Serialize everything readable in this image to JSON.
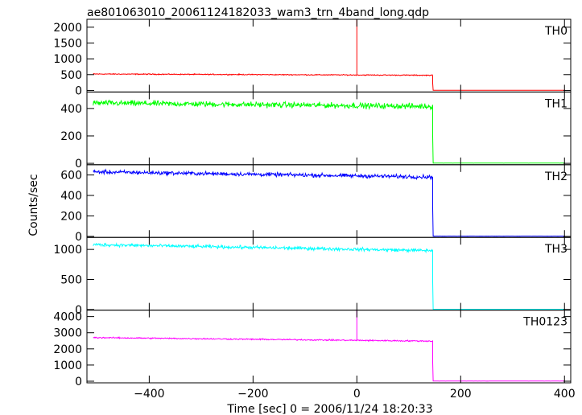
{
  "chart_data": {
    "type": "line",
    "title": "ae801063010_20061124182033_wam3_trn_4band_long.qdp",
    "xlabel": "Time [sec] 0 = 2006/11/24 18:20:33",
    "ylabel": "Counts/sec",
    "xlim": [
      -520,
      412
    ],
    "x_ticks": [
      -400,
      -200,
      0,
      200,
      400
    ],
    "x_tick_labels": [
      "−400",
      "−200",
      "0",
      "200",
      "400"
    ],
    "panels": [
      {
        "name": "TH0",
        "color": "#ff0000",
        "ylim": [
          -50,
          2250
        ],
        "y_ticks": [
          0,
          500,
          1000,
          1500,
          2000
        ],
        "series": {
          "start": -508,
          "drop": 146,
          "end": 402,
          "level_start": 520,
          "level_end": 480,
          "noise": 22,
          "floor": 5,
          "spike": {
            "x": 0,
            "y": 2250
          }
        }
      },
      {
        "name": "TH1",
        "color": "#00ff00",
        "ylim": [
          -10,
          520
        ],
        "y_ticks": [
          0,
          200,
          400
        ],
        "series": {
          "start": -508,
          "drop": 146,
          "end": 402,
          "level_start": 440,
          "level_end": 415,
          "noise": 30,
          "floor": 2
        }
      },
      {
        "name": "TH2",
        "color": "#0000ff",
        "ylim": [
          -10,
          700
        ],
        "y_ticks": [
          0,
          200,
          400,
          600
        ],
        "series": {
          "start": -508,
          "drop": 146,
          "end": 402,
          "level_start": 630,
          "level_end": 580,
          "noise": 28,
          "floor": 3
        }
      },
      {
        "name": "TH3",
        "color": "#00ffff",
        "ylim": [
          -10,
          1200
        ],
        "y_ticks": [
          0,
          500,
          1000
        ],
        "series": {
          "start": -508,
          "drop": 146,
          "end": 402,
          "level_start": 1080,
          "level_end": 980,
          "noise": 40,
          "floor": 3
        }
      },
      {
        "name": "TH0123",
        "color": "#ff00ff",
        "ylim": [
          -100,
          4400
        ],
        "y_ticks": [
          0,
          1000,
          2000,
          3000,
          4000
        ],
        "series": {
          "start": -508,
          "drop": 146,
          "end": 402,
          "level_start": 2700,
          "level_end": 2480,
          "noise": 60,
          "floor": 10,
          "spike": {
            "x": 0,
            "y": 4400
          }
        }
      }
    ]
  }
}
